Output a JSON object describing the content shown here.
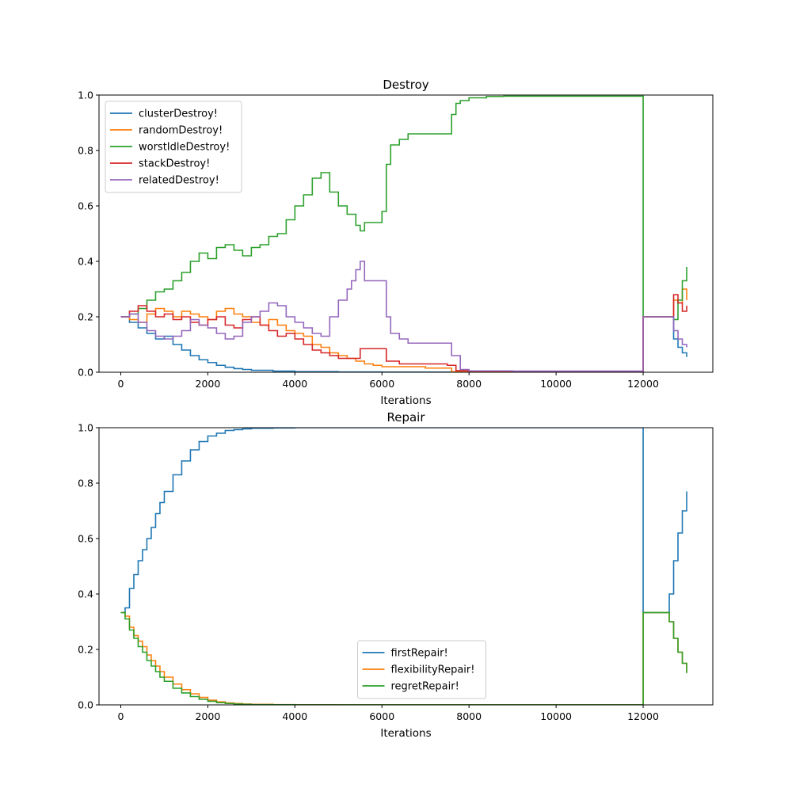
{
  "chart_data": [
    {
      "type": "line",
      "title": "Destroy",
      "xlabel": "Iterations",
      "ylabel": "",
      "xlim": [
        -500,
        13600
      ],
      "ylim": [
        0,
        1
      ],
      "xticks": [
        0,
        2000,
        4000,
        6000,
        8000,
        10000,
        12000
      ],
      "yticks": [
        0.0,
        0.2,
        0.4,
        0.6,
        0.8,
        1.0
      ],
      "xtick_labels": [
        "0",
        "2000",
        "4000",
        "6000",
        "8000",
        "10000",
        "12000"
      ],
      "ytick_labels": [
        "0.0",
        "0.2",
        "0.4",
        "0.6",
        "0.8",
        "1.0"
      ],
      "grid": false,
      "legend": "upper-left",
      "series": [
        {
          "name": "clusterDestroy!",
          "color": "#1f77b4",
          "x": [
            0,
            200,
            400,
            600,
            800,
            1000,
            1200,
            1400,
            1600,
            1800,
            2000,
            2200,
            2400,
            2600,
            2800,
            3000,
            3500,
            4000,
            5000,
            6000,
            8000,
            10000,
            11990,
            12000,
            12600,
            12700,
            12800,
            12900,
            13000
          ],
          "y": [
            0.2,
            0.18,
            0.16,
            0.14,
            0.12,
            0.13,
            0.1,
            0.08,
            0.06,
            0.045,
            0.035,
            0.025,
            0.018,
            0.013,
            0.01,
            0.007,
            0.004,
            0.002,
            0.001,
            0.0005,
            0.0003,
            0.0002,
            0.0002,
            0.2,
            0.2,
            0.12,
            0.09,
            0.07,
            0.055
          ]
        },
        {
          "name": "randomDestroy!",
          "color": "#ff7f0e",
          "x": [
            0,
            200,
            400,
            600,
            800,
            1000,
            1200,
            1400,
            1600,
            1800,
            2000,
            2200,
            2400,
            2600,
            2800,
            3000,
            3200,
            3400,
            3600,
            3800,
            4000,
            4200,
            4400,
            4600,
            4800,
            5000,
            5200,
            5400,
            5600,
            5800,
            6000,
            6400,
            7000,
            7500,
            7600,
            8000,
            9000,
            10000,
            11990,
            12000,
            12600,
            12700,
            12800,
            12900,
            13000
          ],
          "y": [
            0.2,
            0.19,
            0.18,
            0.21,
            0.23,
            0.22,
            0.2,
            0.22,
            0.21,
            0.2,
            0.19,
            0.22,
            0.23,
            0.21,
            0.2,
            0.18,
            0.17,
            0.19,
            0.17,
            0.15,
            0.14,
            0.13,
            0.1,
            0.09,
            0.07,
            0.06,
            0.05,
            0.04,
            0.03,
            0.025,
            0.02,
            0.02,
            0.015,
            0.015,
            0.002,
            0.001,
            0.001,
            0.001,
            0.001,
            0.2,
            0.2,
            0.26,
            0.25,
            0.3,
            0.26
          ]
        },
        {
          "name": "worstIdleDestroy!",
          "color": "#2ca02c",
          "x": [
            0,
            200,
            400,
            600,
            800,
            1000,
            1200,
            1400,
            1600,
            1800,
            2000,
            2200,
            2400,
            2600,
            2800,
            3000,
            3200,
            3400,
            3600,
            3800,
            4000,
            4200,
            4400,
            4600,
            4800,
            5000,
            5200,
            5400,
            5500,
            5600,
            6000,
            6100,
            6200,
            6400,
            6600,
            7000,
            7500,
            7600,
            7700,
            7800,
            8000,
            8400,
            8800,
            9000,
            10000,
            11000,
            11990,
            12000,
            12600,
            12700,
            12800,
            12900,
            13000
          ],
          "y": [
            0.2,
            0.21,
            0.23,
            0.26,
            0.29,
            0.3,
            0.33,
            0.36,
            0.4,
            0.43,
            0.41,
            0.45,
            0.46,
            0.44,
            0.42,
            0.45,
            0.46,
            0.49,
            0.5,
            0.55,
            0.6,
            0.64,
            0.7,
            0.72,
            0.65,
            0.6,
            0.57,
            0.53,
            0.51,
            0.54,
            0.58,
            0.75,
            0.82,
            0.84,
            0.86,
            0.86,
            0.86,
            0.93,
            0.97,
            0.98,
            0.99,
            0.995,
            0.996,
            0.996,
            0.996,
            0.996,
            0.996,
            0.2,
            0.2,
            0.19,
            0.26,
            0.33,
            0.38
          ]
        },
        {
          "name": "stackDestroy!",
          "color": "#d62728",
          "x": [
            0,
            200,
            400,
            600,
            800,
            1000,
            1200,
            1400,
            1600,
            1800,
            2000,
            2200,
            2400,
            2600,
            2800,
            3000,
            3200,
            3400,
            3600,
            3800,
            4000,
            4200,
            4400,
            4600,
            4800,
            5000,
            5200,
            5400,
            5500,
            6000,
            6100,
            6400,
            7000,
            7500,
            7700,
            8000,
            9000,
            10000,
            11990,
            12000,
            12600,
            12700,
            12800,
            12900,
            13000
          ],
          "y": [
            0.2,
            0.22,
            0.24,
            0.22,
            0.2,
            0.21,
            0.19,
            0.2,
            0.18,
            0.17,
            0.19,
            0.2,
            0.17,
            0.16,
            0.19,
            0.2,
            0.17,
            0.15,
            0.13,
            0.14,
            0.12,
            0.1,
            0.08,
            0.07,
            0.06,
            0.05,
            0.05,
            0.05,
            0.085,
            0.085,
            0.04,
            0.03,
            0.03,
            0.025,
            0.006,
            0.004,
            0.003,
            0.003,
            0.003,
            0.2,
            0.2,
            0.28,
            0.25,
            0.22,
            0.24
          ]
        },
        {
          "name": "relatedDestroy!",
          "color": "#9467bd",
          "x": [
            0,
            200,
            400,
            600,
            800,
            1000,
            1200,
            1400,
            1600,
            1800,
            2000,
            2200,
            2400,
            2600,
            2800,
            3000,
            3200,
            3400,
            3600,
            3800,
            4000,
            4200,
            4400,
            4600,
            4800,
            5000,
            5200,
            5300,
            5400,
            5500,
            5600,
            6000,
            6100,
            6200,
            6400,
            6600,
            7000,
            7500,
            7600,
            7800,
            8000,
            9000,
            10000,
            11990,
            12000,
            12600,
            12700,
            12800,
            12900,
            13000
          ],
          "y": [
            0.2,
            0.21,
            0.18,
            0.15,
            0.13,
            0.12,
            0.13,
            0.15,
            0.19,
            0.17,
            0.16,
            0.14,
            0.12,
            0.13,
            0.18,
            0.2,
            0.22,
            0.25,
            0.24,
            0.2,
            0.18,
            0.16,
            0.14,
            0.13,
            0.2,
            0.26,
            0.3,
            0.33,
            0.37,
            0.4,
            0.33,
            0.33,
            0.2,
            0.14,
            0.12,
            0.105,
            0.105,
            0.105,
            0.06,
            0.01,
            0.005,
            0.004,
            0.004,
            0.004,
            0.2,
            0.2,
            0.15,
            0.12,
            0.1,
            0.09
          ]
        }
      ]
    },
    {
      "type": "line",
      "title": "Repair",
      "xlabel": "Iterations",
      "ylabel": "",
      "xlim": [
        -500,
        13600
      ],
      "ylim": [
        0,
        1
      ],
      "xticks": [
        0,
        2000,
        4000,
        6000,
        8000,
        10000,
        12000
      ],
      "yticks": [
        0.0,
        0.2,
        0.4,
        0.6,
        0.8,
        1.0
      ],
      "xtick_labels": [
        "0",
        "2000",
        "4000",
        "6000",
        "8000",
        "10000",
        "12000"
      ],
      "ytick_labels": [
        "0.0",
        "0.2",
        "0.4",
        "0.6",
        "0.8",
        "1.0"
      ],
      "grid": false,
      "legend": "lower-center",
      "series": [
        {
          "name": "firstRepair!",
          "color": "#1f77b4",
          "x": [
            0,
            100,
            200,
            300,
            400,
            500,
            600,
            700,
            800,
            900,
            1000,
            1200,
            1400,
            1600,
            1800,
            2000,
            2200,
            2400,
            2600,
            2800,
            3000,
            3500,
            4000,
            5000,
            6000,
            8000,
            10000,
            11990,
            12000,
            12500,
            12600,
            12700,
            12800,
            12900,
            13000
          ],
          "y": [
            0.333,
            0.35,
            0.42,
            0.47,
            0.52,
            0.56,
            0.6,
            0.64,
            0.69,
            0.73,
            0.77,
            0.83,
            0.88,
            0.92,
            0.95,
            0.97,
            0.98,
            0.99,
            0.993,
            0.996,
            0.998,
            0.999,
            1.0,
            1.0,
            1.0,
            1.0,
            1.0,
            1.0,
            0.333,
            0.333,
            0.4,
            0.52,
            0.62,
            0.7,
            0.77
          ]
        },
        {
          "name": "flexibilityRepair!",
          "color": "#ff7f0e",
          "x": [
            0,
            100,
            200,
            300,
            400,
            500,
            600,
            700,
            800,
            900,
            1000,
            1200,
            1400,
            1600,
            1800,
            2000,
            2200,
            2400,
            2600,
            2800,
            3000,
            3500,
            4000,
            5000,
            6000,
            8000,
            10000,
            11990,
            12000,
            12500,
            12600,
            12700,
            12800,
            12900,
            13000
          ],
          "y": [
            0.333,
            0.32,
            0.28,
            0.25,
            0.23,
            0.21,
            0.18,
            0.16,
            0.14,
            0.12,
            0.1,
            0.075,
            0.055,
            0.04,
            0.027,
            0.017,
            0.011,
            0.007,
            0.005,
            0.003,
            0.002,
            0.001,
            0.0005,
            0.0002,
            0.0001,
            0.0001,
            0.0001,
            0.0001,
            0.333,
            0.333,
            0.3,
            0.24,
            0.19,
            0.15,
            0.115
          ]
        },
        {
          "name": "regretRepair!",
          "color": "#2ca02c",
          "x": [
            0,
            100,
            200,
            300,
            400,
            500,
            600,
            700,
            800,
            900,
            1000,
            1200,
            1400,
            1600,
            1800,
            2000,
            2200,
            2400,
            2600,
            2800,
            3000,
            3500,
            4000,
            5000,
            6000,
            8000,
            10000,
            11990,
            12000,
            12500,
            12600,
            12700,
            12800,
            12900,
            13000
          ],
          "y": [
            0.333,
            0.31,
            0.27,
            0.24,
            0.21,
            0.19,
            0.16,
            0.14,
            0.12,
            0.1,
            0.085,
            0.06,
            0.043,
            0.03,
            0.02,
            0.013,
            0.008,
            0.005,
            0.003,
            0.002,
            0.001,
            0.0005,
            0.0003,
            0.0001,
            0.0001,
            0.0001,
            0.0001,
            0.0001,
            0.333,
            0.333,
            0.3,
            0.24,
            0.19,
            0.15,
            0.115
          ]
        }
      ]
    }
  ]
}
